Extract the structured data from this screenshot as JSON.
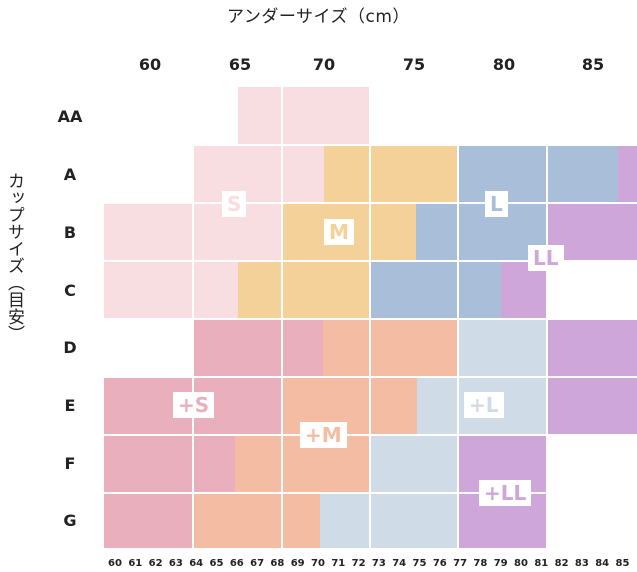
{
  "title": "アンダーサイズ（cm）",
  "side_label": "カップサイズ（目安）",
  "columns": [
    "60",
    "65",
    "70",
    "75",
    "80",
    "85"
  ],
  "rows": [
    "AA",
    "A",
    "B",
    "C",
    "D",
    "E",
    "F",
    "G"
  ],
  "ticks": [
    "60",
    "61",
    "62",
    "63",
    "64",
    "65",
    "66",
    "67",
    "68",
    "69",
    "70",
    "71",
    "72",
    "73",
    "74",
    "75",
    "76",
    "77",
    "78",
    "79",
    "80",
    "81",
    "82",
    "83",
    "84",
    "85"
  ],
  "colors": {
    "S": "#f8dde1",
    "M": "#f3d198",
    "L": "#a9bfd9",
    "LL": "#cfa6d9",
    "+S": "#e9afbc",
    "+M": "#f4bca2",
    "+L": "#d0dbe8",
    "+LL": "#cfa6d9"
  },
  "size_labels": {
    "S": "S",
    "M": "M",
    "L": "L",
    "LL": "LL",
    "pS": "+S",
    "pM": "+M",
    "pL": "+L",
    "pLL": "+LL"
  }
}
